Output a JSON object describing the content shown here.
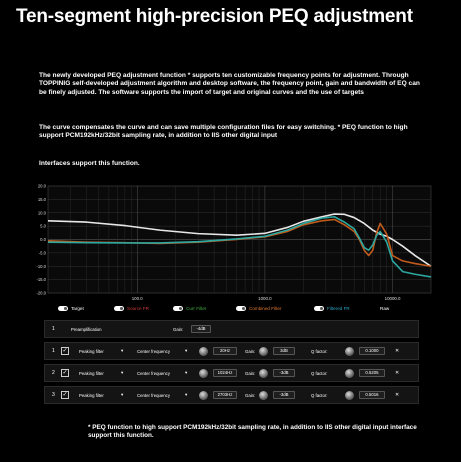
{
  "title": "Ten-segment high-precision PEQ adjustment",
  "paragraphs": {
    "p1": "The newly developed PEQ adjustment function * supports ten customizable frequency points for adjustment. Through TOPPINIG self-developed adjustment algorithm and desktop software, the frequency point, gain and bandwidth of EQ can be finely adjusted. The software supports the import of target and original curves and the use of targets",
    "p2": "The curve compensates the curve and can save multiple configuration files for easy switching. * PEQ function to high support PCM192kHz/32bit sampling rate, in addition to IIS other digital input",
    "p3": "Interfaces support this function."
  },
  "chart_data": {
    "type": "line",
    "x_scale": "log",
    "xlim": [
      20,
      20000
    ],
    "ylim": [
      -20,
      20
    ],
    "y_ticks": [
      "20.0",
      "15.0",
      "10.0",
      "5.0",
      "0.0",
      "-5.0",
      "-10.0",
      "-15.0",
      "-20.0"
    ],
    "x_ticks": [
      {
        "value": 100,
        "label": "100.0"
      },
      {
        "value": 1000,
        "label": "1000.0"
      },
      {
        "value": 10000,
        "label": "10000.0"
      }
    ],
    "grid": true,
    "series": [
      {
        "color": "#e8e8e8",
        "x": [
          20,
          40,
          80,
          150,
          300,
          600,
          1000,
          1500,
          2000,
          2800,
          3500,
          4200,
          5000,
          6000,
          7000,
          8000,
          9000,
          10000,
          12000,
          15000,
          20000
        ],
        "y": [
          7,
          6.5,
          5.2,
          3.5,
          2.2,
          1.6,
          2.3,
          4.5,
          6.8,
          8.5,
          9.5,
          9.4,
          8.2,
          6,
          3.5,
          2,
          1.2,
          0,
          -2.5,
          -6,
          -10
        ]
      },
      {
        "color": "#c25a1c",
        "x": [
          20,
          40,
          80,
          150,
          300,
          600,
          1000,
          1500,
          2000,
          2800,
          3500,
          4200,
          5000,
          5500,
          6000,
          6500,
          7000,
          7500,
          8000,
          9000,
          10000,
          12000,
          15000,
          20000
        ],
        "y": [
          -0.5,
          -1,
          -1.2,
          -1.5,
          -1,
          0,
          1,
          3,
          5.5,
          7,
          7.5,
          5.5,
          3,
          0,
          -4,
          -6,
          -4,
          2.5,
          6,
          2,
          -6,
          -8,
          -9,
          -10
        ]
      },
      {
        "color": "#2ca8a0",
        "x": [
          20,
          40,
          80,
          150,
          300,
          600,
          1000,
          1500,
          2000,
          2800,
          3500,
          4200,
          5000,
          5500,
          6000,
          6500,
          7000,
          7500,
          8000,
          9000,
          10000,
          12000,
          15000,
          20000
        ],
        "y": [
          -1,
          -1.2,
          -1.3,
          -1.3,
          -0.8,
          0.2,
          1.2,
          3.5,
          6,
          8,
          8.5,
          6.5,
          4,
          0.5,
          -3,
          -4,
          -2,
          1.5,
          3,
          -1,
          -8,
          -12,
          -13,
          -14
        ]
      }
    ]
  },
  "legend": [
    {
      "label": "Target",
      "color": "#ffffff"
    },
    {
      "label": "Source FR",
      "color": "#d23a3a"
    },
    {
      "label": "Curr Filter",
      "color": "#3fae3f"
    },
    {
      "label": "Combined Filter",
      "color": "#e0782a"
    },
    {
      "label": "Filtered FR",
      "color": "#2ca8c8"
    },
    {
      "label": "Raw",
      "color": "#ffffff"
    }
  ],
  "preamp": {
    "index": "1",
    "label": "Preamplification",
    "gain_label": "Gain:",
    "gain_value": "-4dB"
  },
  "filters": [
    {
      "index": "1",
      "check": "✓",
      "type": "Peaking filter",
      "cf_label": "Center frequency",
      "freq": "20Hz",
      "gain_label": "Gain:",
      "gain": "3dB",
      "q_label": "Q factor:",
      "q": "0.1000"
    },
    {
      "index": "2",
      "check": "✓",
      "type": "Peaking filter",
      "cf_label": "Center frequency",
      "freq": "1024Hz",
      "gain_label": "Gain:",
      "gain": "-3dB",
      "q_label": "Q factor:",
      "q": "0.5205"
    },
    {
      "index": "3",
      "check": "✓",
      "type": "Peaking filter",
      "cf_label": "Center frequency",
      "freq": "2703Hz",
      "gain_label": "Gain:",
      "gain": "-3dB",
      "q_label": "Q factor:",
      "q": "0.5016"
    }
  ],
  "dropdown_glyph": "▾",
  "delete_glyph": "✕",
  "note": "* PEQ function to high support PCM192kHz/32bit sampling rate, in addition to IIS other digital input interface support this function."
}
